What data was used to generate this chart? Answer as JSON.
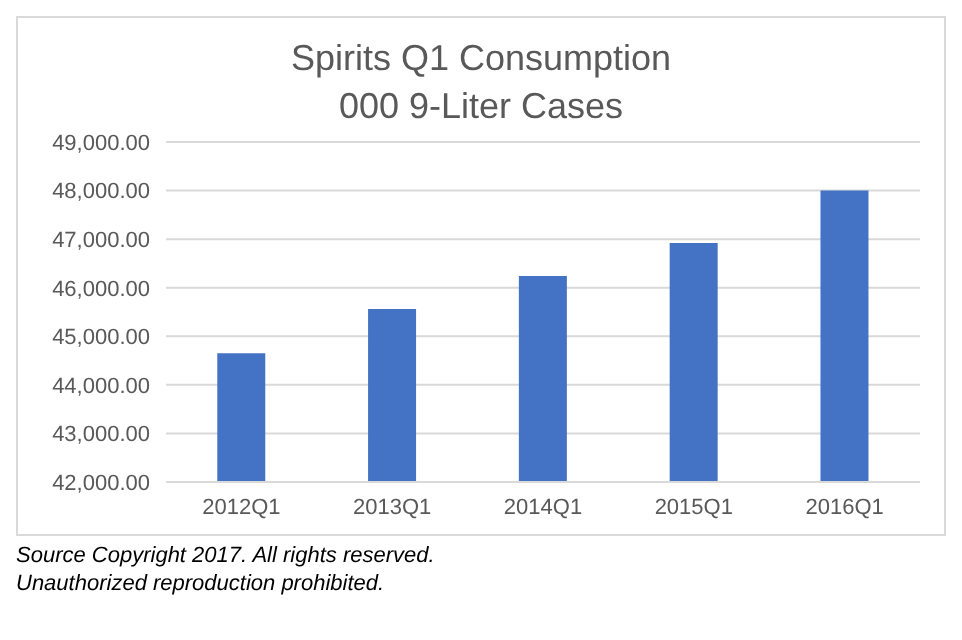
{
  "chart_data": {
    "type": "bar",
    "title": "Spirits Q1 Consumption",
    "subtitle": "000 9-Liter Cases",
    "categories": [
      "2012Q1",
      "2013Q1",
      "2014Q1",
      "2015Q1",
      "2016Q1"
    ],
    "values": [
      44650,
      45560,
      46240,
      46920,
      48000
    ],
    "color": "#4472c4",
    "ylim": [
      42000,
      49000
    ],
    "yticks": [
      {
        "value": 42000,
        "label": "42,000.00"
      },
      {
        "value": 43000,
        "label": "43,000.00"
      },
      {
        "value": 44000,
        "label": "44,000.00"
      },
      {
        "value": 45000,
        "label": "45,000.00"
      },
      {
        "value": 46000,
        "label": "46,000.00"
      },
      {
        "value": 47000,
        "label": "47,000.00"
      },
      {
        "value": 48000,
        "label": "48,000.00"
      },
      {
        "value": 49000,
        "label": "49,000.00"
      }
    ],
    "grid": "y",
    "annotations": [
      "Source Copyright 2017.  All rights reserved.",
      "Unauthorized reproduction prohibited."
    ]
  }
}
